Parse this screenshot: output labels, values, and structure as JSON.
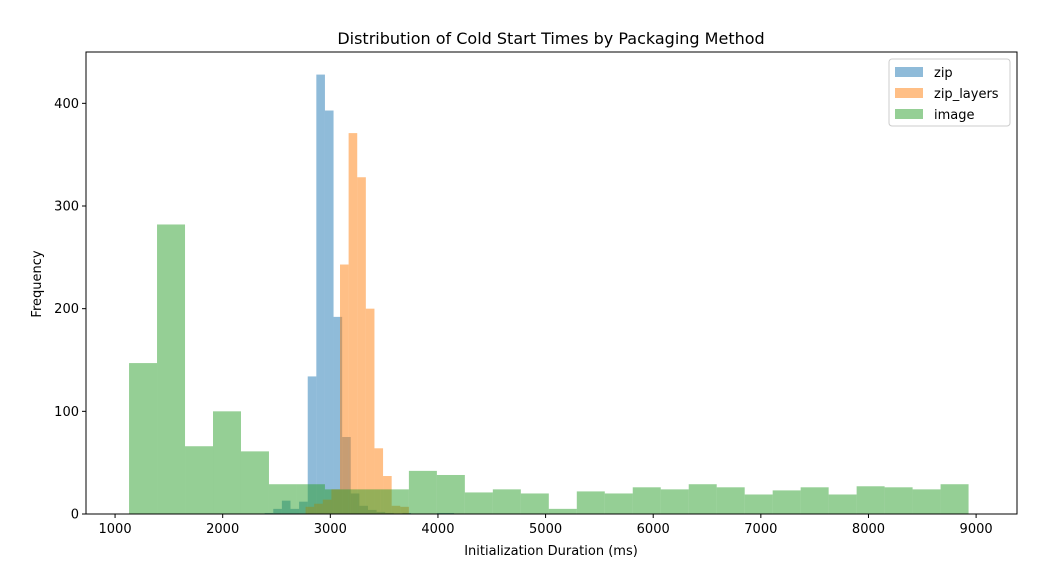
{
  "chart_data": {
    "type": "bar",
    "subtype": "overlaid-histogram",
    "title": "Distribution of Cold Start Times by Packaging Method",
    "xlabel": "Initialization Duration (ms)",
    "ylabel": "Frequency",
    "xlim": [
      730,
      9380
    ],
    "ylim": [
      0,
      450
    ],
    "xticks": [
      1000,
      2000,
      3000,
      4000,
      5000,
      6000,
      7000,
      8000,
      9000
    ],
    "yticks": [
      0,
      100,
      200,
      300,
      400
    ],
    "grid": false,
    "legend": "top-right",
    "series": [
      {
        "name": "zip",
        "color": "#1f77b4",
        "alpha": 0.5,
        "bin_edges": [
          2390,
          2470,
          2550,
          2630,
          2710,
          2790,
          2870,
          2950,
          3030,
          3110,
          3190,
          3270,
          3350,
          3430,
          3510,
          3590,
          3670,
          3750,
          3830,
          3910,
          3990,
          4070,
          4150
        ],
        "counts": [
          1,
          5,
          13,
          5,
          12,
          134,
          428,
          393,
          192,
          75,
          20,
          8,
          4,
          2,
          1,
          0,
          1,
          0,
          0,
          0,
          1,
          1
        ]
      },
      {
        "name": "zip_layers",
        "color": "#ff7f0e",
        "alpha": 0.5,
        "bin_edges": [
          2770,
          2850,
          2930,
          3010,
          3090,
          3170,
          3250,
          3330,
          3410,
          3490,
          3570,
          3650,
          3730
        ],
        "counts": [
          7,
          10,
          14,
          24,
          243,
          371,
          328,
          200,
          64,
          37,
          8,
          7
        ]
      },
      {
        "name": "image",
        "color": "#2ca02c",
        "alpha": 0.5,
        "bin_edges": [
          1130,
          1390,
          1650,
          1910,
          2170,
          2430,
          2690,
          2950,
          3210,
          3470,
          3730,
          3990,
          4250,
          4510,
          4770,
          5030,
          5290,
          5550,
          5810,
          6070,
          6330,
          6590,
          6850,
          7110,
          7370,
          7630,
          7890,
          8150,
          8410,
          8670,
          8930
        ],
        "counts": [
          147,
          282,
          66,
          100,
          61,
          29,
          29,
          24,
          24,
          24,
          42,
          38,
          21,
          24,
          20,
          5,
          22,
          20,
          26,
          24,
          29,
          26,
          19,
          23,
          26,
          19,
          27,
          26,
          24,
          29
        ]
      }
    ]
  }
}
